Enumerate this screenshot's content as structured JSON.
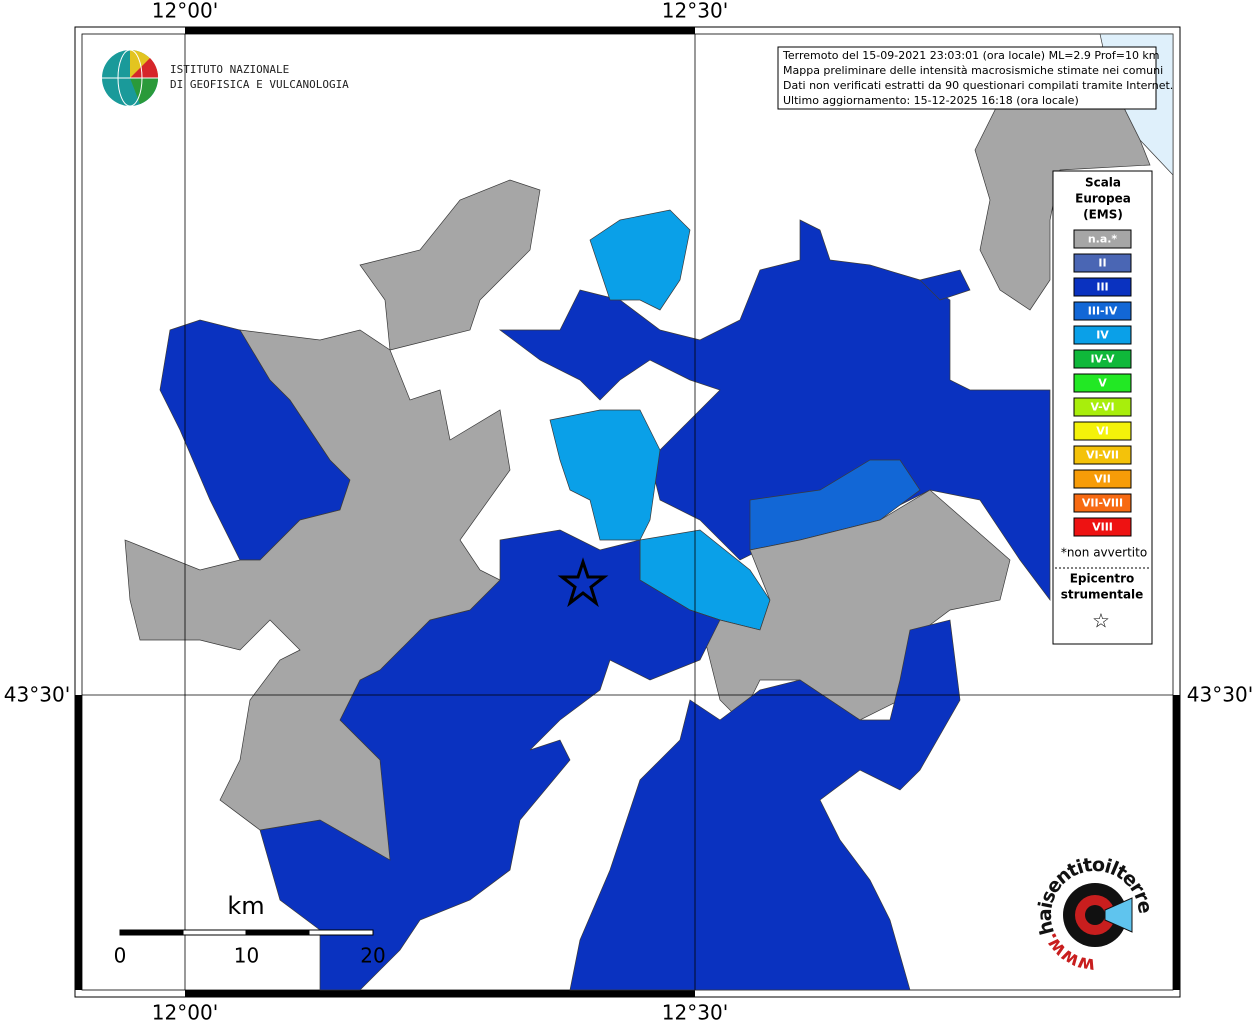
{
  "frame_labels": {
    "lon_left_top": "12°00'",
    "lon_right_top": "12°30'",
    "lon_left_bottom": "12°00'",
    "lon_right_bottom": "12°30'",
    "lat_left": "43°30'",
    "lat_right": "43°30'"
  },
  "institute": {
    "line1": "ISTITUTO NAZIONALE",
    "line2": "DI GEOFISICA E VULCANOLOGIA"
  },
  "info_box": [
    "Terremoto del 15-09-2021 23:03:01 (ora locale) ML=2.9 Prof=10 km",
    "Mappa preliminare delle intensità macrosismiche stimate nei comuni",
    "Dati non verificati estratti da 90 questionari compilati tramite Internet.",
    "Ultimo aggiornamento: 15-12-2025 16:18 (ora locale)"
  ],
  "legend": {
    "title": [
      "Scala",
      "Europea",
      "(EMS)"
    ],
    "items": [
      {
        "label": "n.a.*",
        "color": "#a6a6a6"
      },
      {
        "label": "II",
        "color": "#4a66b4"
      },
      {
        "label": "III",
        "color": "#0a32c0"
      },
      {
        "label": "III-IV",
        "color": "#1267d6"
      },
      {
        "label": "IV",
        "color": "#0aa0e8"
      },
      {
        "label": "IV-V",
        "color": "#0fb83a"
      },
      {
        "label": "V",
        "color": "#22e824"
      },
      {
        "label": "V-VI",
        "color": "#a8ee0c"
      },
      {
        "label": "VI",
        "color": "#f4f20a"
      },
      {
        "label": "VI-VII",
        "color": "#f4c20a"
      },
      {
        "label": "VII",
        "color": "#f79c08"
      },
      {
        "label": "VII-VIII",
        "color": "#f76a12"
      },
      {
        "label": "VIII",
        "color": "#ee1212"
      }
    ],
    "note": "*non avvertito",
    "epicenter": [
      "Epicentro",
      "strumentale"
    ],
    "epicenter_symbol": "☆"
  },
  "scale_bar": {
    "unit": "km",
    "labels": [
      0,
      10,
      20
    ]
  },
  "logo_text": "haisentitoilterremoto.it",
  "logo_prefix": "www."
}
